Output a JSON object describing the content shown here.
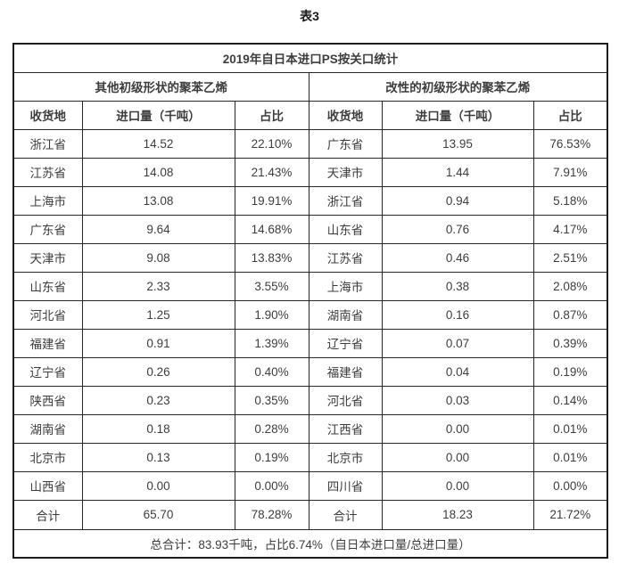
{
  "page": {
    "caption": "表3"
  },
  "table": {
    "title": "2019年自日本进口PS按关口统计",
    "sections": {
      "left": "其他初级形状的聚苯乙烯",
      "right": "改性的初级形状的聚苯乙烯"
    },
    "columns": {
      "region": "收货地",
      "volume": "进口量（千吨）",
      "share": "占比"
    },
    "rows": [
      {
        "left": {
          "region": "浙江省",
          "volume": "14.52",
          "share": "22.10%"
        },
        "right": {
          "region": "广东省",
          "volume": "13.95",
          "share": "76.53%"
        }
      },
      {
        "left": {
          "region": "江苏省",
          "volume": "14.08",
          "share": "21.43%"
        },
        "right": {
          "region": "天津市",
          "volume": "1.44",
          "share": "7.91%"
        }
      },
      {
        "left": {
          "region": "上海市",
          "volume": "13.08",
          "share": "19.91%"
        },
        "right": {
          "region": "浙江省",
          "volume": "0.94",
          "share": "5.18%"
        }
      },
      {
        "left": {
          "region": "广东省",
          "volume": "9.64",
          "share": "14.68%"
        },
        "right": {
          "region": "山东省",
          "volume": "0.76",
          "share": "4.17%"
        }
      },
      {
        "left": {
          "region": "天津市",
          "volume": "9.08",
          "share": "13.83%"
        },
        "right": {
          "region": "江苏省",
          "volume": "0.46",
          "share": "2.51%"
        }
      },
      {
        "left": {
          "region": "山东省",
          "volume": "2.33",
          "share": "3.55%"
        },
        "right": {
          "region": "上海市",
          "volume": "0.38",
          "share": "2.08%"
        }
      },
      {
        "left": {
          "region": "河北省",
          "volume": "1.25",
          "share": "1.90%"
        },
        "right": {
          "region": "湖南省",
          "volume": "0.16",
          "share": "0.87%"
        }
      },
      {
        "left": {
          "region": "福建省",
          "volume": "0.91",
          "share": "1.39%"
        },
        "right": {
          "region": "辽宁省",
          "volume": "0.07",
          "share": "0.39%"
        }
      },
      {
        "left": {
          "region": "辽宁省",
          "volume": "0.26",
          "share": "0.40%"
        },
        "right": {
          "region": "福建省",
          "volume": "0.04",
          "share": "0.19%"
        }
      },
      {
        "left": {
          "region": "陕西省",
          "volume": "0.23",
          "share": "0.35%"
        },
        "right": {
          "region": "河北省",
          "volume": "0.03",
          "share": "0.14%"
        }
      },
      {
        "left": {
          "region": "湖南省",
          "volume": "0.18",
          "share": "0.28%"
        },
        "right": {
          "region": "江西省",
          "volume": "0.00",
          "share": "0.01%"
        }
      },
      {
        "left": {
          "region": "北京市",
          "volume": "0.13",
          "share": "0.19%"
        },
        "right": {
          "region": "北京市",
          "volume": "0.00",
          "share": "0.01%"
        }
      },
      {
        "left": {
          "region": "山西省",
          "volume": "0.00",
          "share": "0.00%"
        },
        "right": {
          "region": "四川省",
          "volume": "0.00",
          "share": "0.00%"
        }
      }
    ],
    "totals": {
      "label": "合计",
      "left": {
        "volume": "65.70",
        "share": "78.28%"
      },
      "right": {
        "volume": "18.23",
        "share": "21.72%"
      }
    },
    "footer": "总合计：83.93千吨，占比6.74%（自日本进口量/总进口量）"
  }
}
